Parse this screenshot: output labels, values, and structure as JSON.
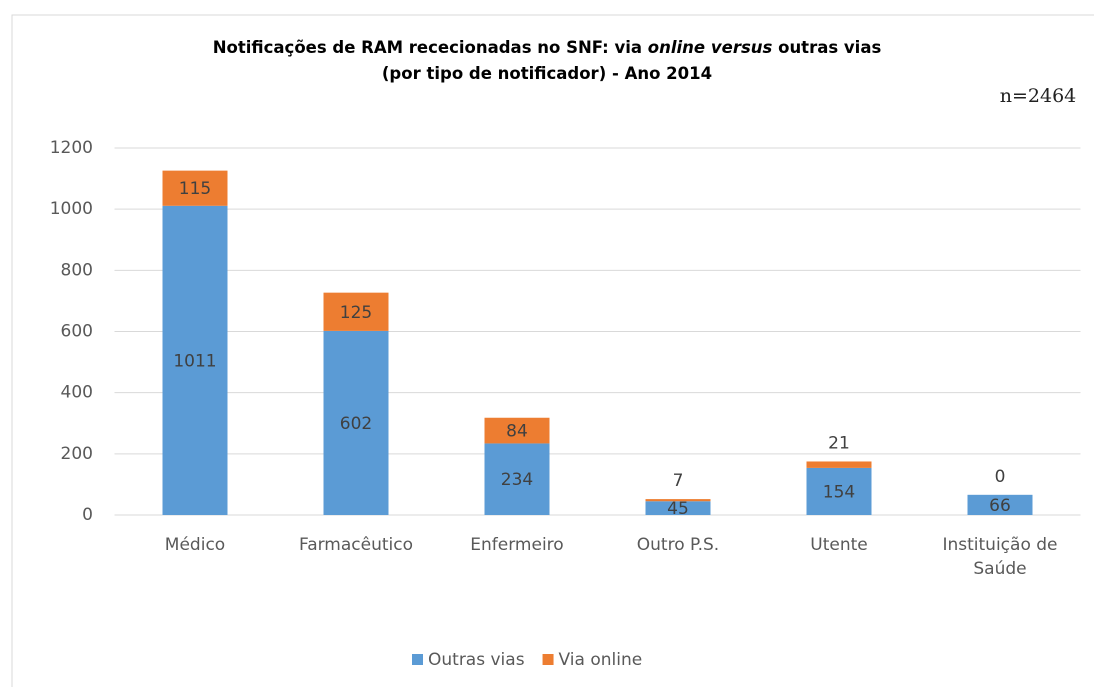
{
  "chart_data": {
    "type": "stacked_bar",
    "title": [
      [
        {
          "text": "Notificações de RAM rececionadas no SNF: via ",
          "italic": false
        },
        {
          "text": "online",
          "italic": true
        },
        {
          "text": "  ",
          "italic": false
        },
        {
          "text": "versus",
          "italic": true
        },
        {
          "text": " outras vias",
          "italic": false
        }
      ],
      [
        {
          "text": "(por tipo de notificador) - Ano 2014",
          "italic": false
        }
      ]
    ],
    "annotation": "n=2464",
    "categories": [
      "Médico",
      "Farmacêutico",
      "Enfermeiro",
      "Outro P.S.",
      "Utente",
      "Instituição de Saúde"
    ],
    "series": [
      {
        "name": "Outras vias",
        "color": "#5b9bd5",
        "values": [
          1011,
          602,
          234,
          45,
          154,
          66
        ]
      },
      {
        "name": "Via online",
        "color": "#ed7d31",
        "values": [
          115,
          125,
          84,
          7,
          21,
          0
        ]
      }
    ],
    "ylim": [
      0,
      1200
    ],
    "yticks": [
      0,
      200,
      400,
      600,
      800,
      1000,
      1200
    ],
    "grid": true,
    "legend": "bottom"
  }
}
